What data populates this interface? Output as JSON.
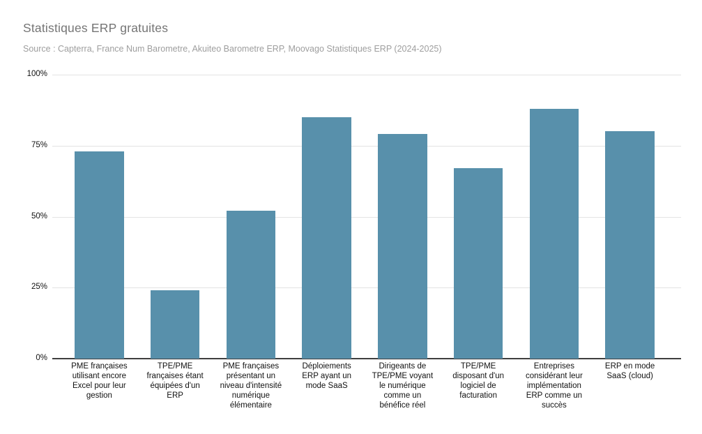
{
  "header": {
    "title": "Statistiques ERP gratuites",
    "subtitle": "Source : Capterra, France Num Barometre, Akuiteo Barometre ERP, Moovago Statistiques ERP (2024-2025)"
  },
  "chart_data": {
    "type": "bar",
    "title": "Statistiques ERP gratuites",
    "subtitle": "Source : Capterra, France Num Barometre, Akuiteo Barometre ERP, Moovago Statistiques ERP (2024-2025)",
    "categories": [
      "PME françaises utilisant encore Excel pour leur gestion",
      "TPE/PME françaises étant équipées d'un ERP",
      "PME françaises présentant un niveau d'intensité numérique élémentaire",
      "Déploiements ERP ayant un mode SaaS",
      "Dirigeants de TPE/PME voyant le numérique comme un bénéfice réel",
      "TPE/PME disposant d'un logiciel de facturation",
      "Entreprises considérant leur implémentation ERP comme un succès",
      "ERP en mode SaaS (cloud)"
    ],
    "values": [
      73,
      24,
      52,
      85,
      79,
      67,
      88,
      80
    ],
    "unit": "%",
    "xlabel": "",
    "ylabel": "",
    "ylim": [
      0,
      100
    ],
    "yticks": [
      0,
      25,
      50,
      75,
      100
    ],
    "ytick_labels": [
      "0%",
      "25%",
      "50%",
      "75%",
      "100%"
    ],
    "grid": true,
    "legend": "none",
    "colors": {
      "bar": "#5890ab",
      "title_text": "#757575",
      "subtitle_text": "#9e9e9e",
      "axis_text": "#111111",
      "gridline": "#e3e3e3",
      "baseline": "#3f3f3f",
      "background": "#ffffff"
    }
  }
}
